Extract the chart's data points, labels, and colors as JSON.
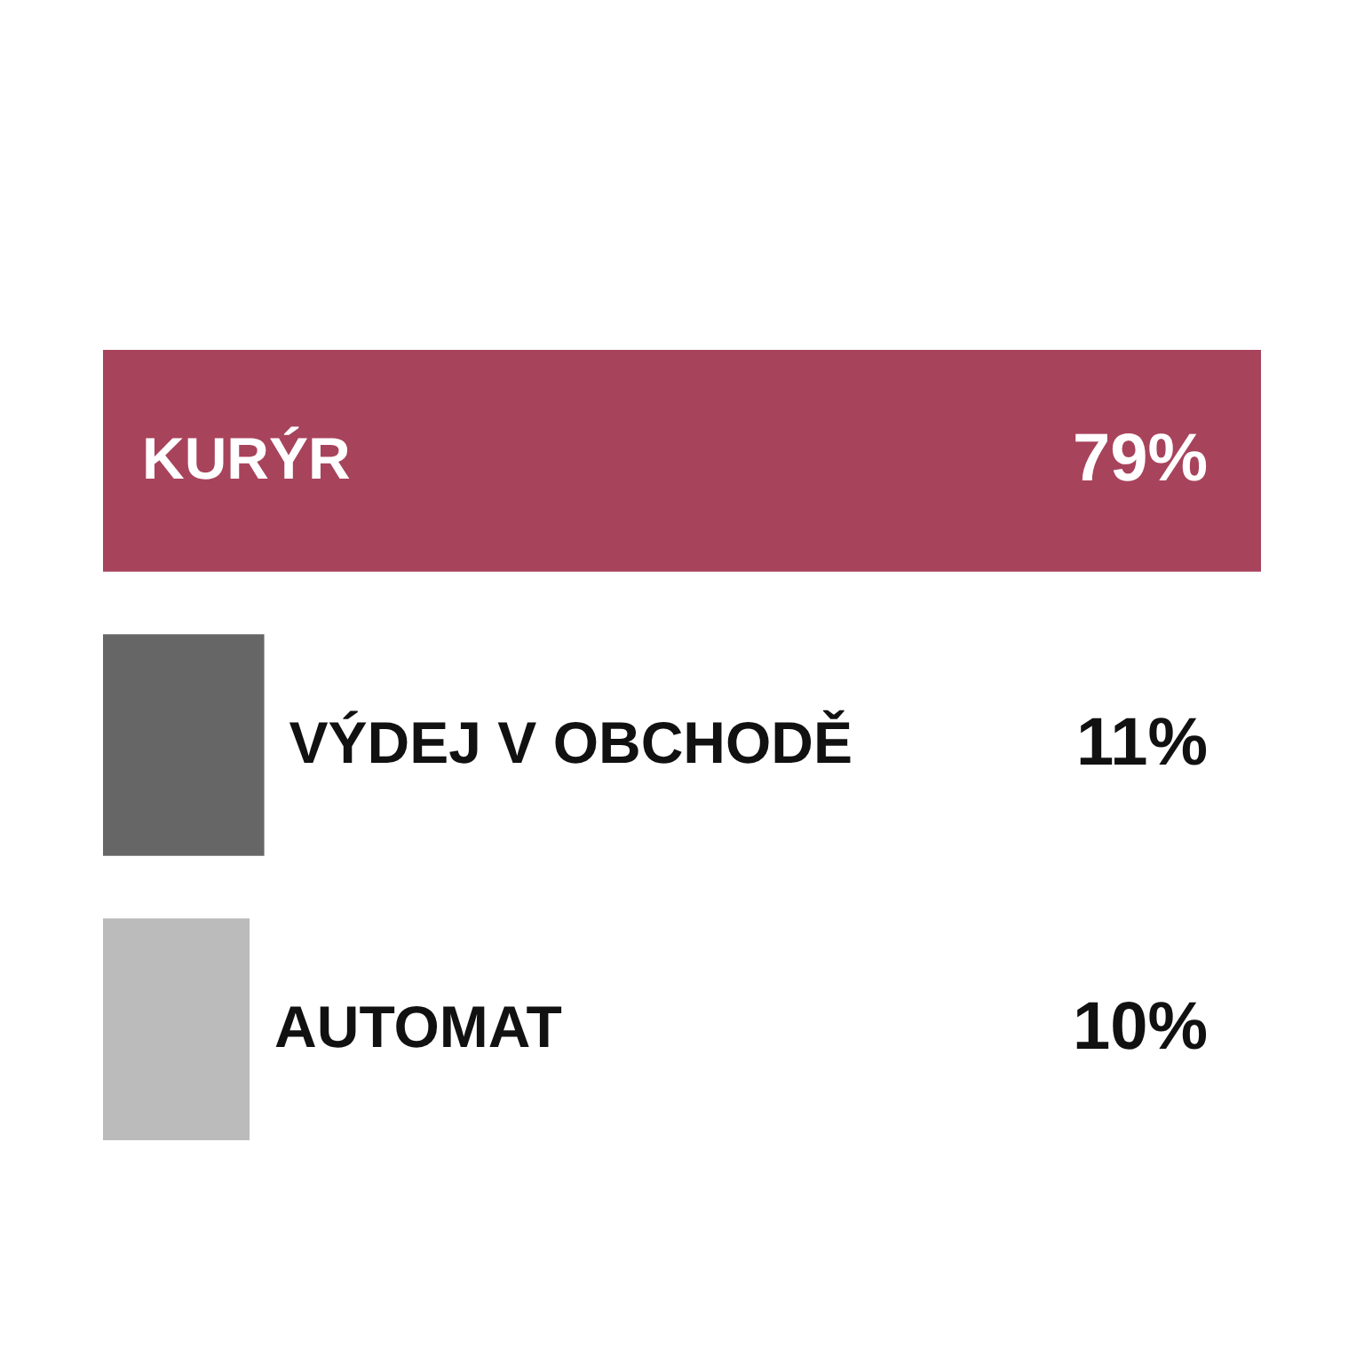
{
  "chart_data": {
    "type": "bar",
    "orientation": "horizontal",
    "categories": [
      "KURÝR",
      "VÝDEJ V OBCHODĚ",
      "AUTOMAT"
    ],
    "values": [
      79,
      11,
      10
    ],
    "value_labels": [
      "79%",
      "11%",
      "10%"
    ],
    "colors": [
      "#a8435c",
      "#666666",
      "#bbbbbb"
    ],
    "tick_labels": false
  }
}
